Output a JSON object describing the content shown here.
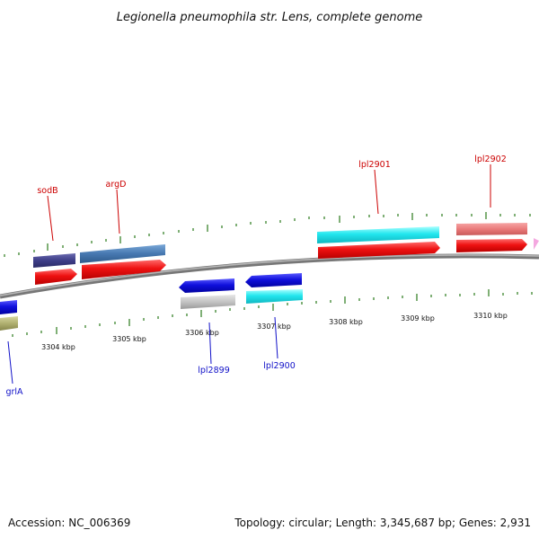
{
  "title": "Legionella pneumophila str. Lens, complete genome",
  "footer": {
    "accession": "Accession: NC_006369",
    "summary": "Topology: circular; Length: 3,345,687 bp; Genes: 2,931"
  },
  "scale_labels": [
    "3304 kbp",
    "3305 kbp",
    "3306 kbp",
    "3307 kbp",
    "3308 kbp",
    "3309 kbp",
    "3310 kbp"
  ],
  "gene_labels": {
    "forward": [
      "sodB",
      "argD",
      "lpl2901",
      "lpl2902"
    ],
    "reverse": [
      "lpl2899",
      "lpl2900",
      "grlA"
    ]
  },
  "colors": {
    "backbone": "#8a8a8a",
    "forward_cds": "#ee1111",
    "reverse_cds": "#1111dd",
    "forward_label": "#cc0000",
    "reverse_label": "#1010c8",
    "ticks": "#2a7a1a"
  }
}
